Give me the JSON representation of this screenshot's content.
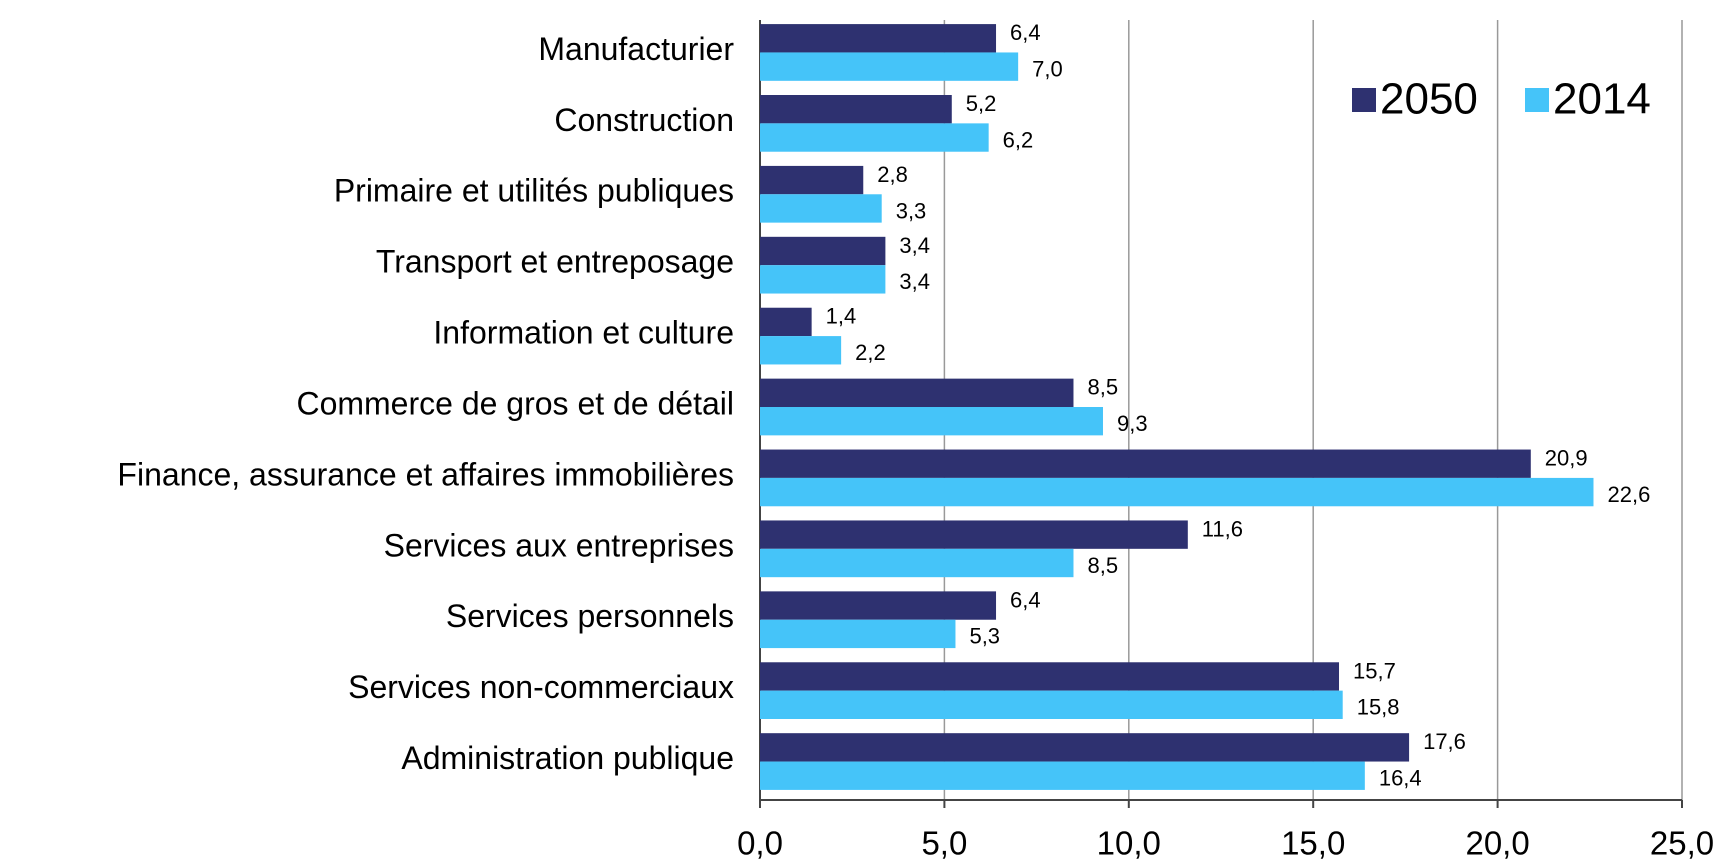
{
  "chart_data": {
    "type": "barh",
    "categories": [
      "Manufacturier",
      "Construction",
      "Primaire et utilités publiques",
      "Transport et entreposage",
      "Information et culture",
      "Commerce de gros et de détail",
      "Finance, assurance et affaires immobilières",
      "Services aux entreprises",
      "Services personnels",
      "Services non-commerciaux",
      "Administration publique"
    ],
    "series": [
      {
        "name": "2050",
        "color": "#2e3170",
        "values": [
          6.4,
          5.2,
          2.8,
          3.4,
          1.4,
          8.5,
          20.9,
          11.6,
          6.4,
          15.7,
          17.6
        ],
        "value_labels": [
          "6,4",
          "5,2",
          "2,8",
          "3,4",
          "1,4",
          "8,5",
          "20,9",
          "11,6",
          "6,4",
          "15,7",
          "17,6"
        ]
      },
      {
        "name": "2014",
        "color": "#45c4f9",
        "values": [
          7.0,
          6.2,
          3.3,
          3.4,
          2.2,
          9.3,
          22.6,
          8.5,
          5.3,
          15.8,
          16.4
        ],
        "value_labels": [
          "7,0",
          "6,2",
          "3,3",
          "3,4",
          "2,2",
          "9,3",
          "22,6",
          "8,5",
          "5,3",
          "15,8",
          "16,4"
        ]
      }
    ],
    "xlim": [
      0,
      25
    ],
    "xticks": [
      {
        "value": 0,
        "label": "0,0"
      },
      {
        "value": 5,
        "label": "5,0"
      },
      {
        "value": 10,
        "label": "10,0"
      },
      {
        "value": 15,
        "label": "15,0"
      },
      {
        "value": 20,
        "label": "20,0"
      },
      {
        "value": 25,
        "label": "25,0"
      }
    ],
    "grid": true,
    "legend": "top-right"
  }
}
